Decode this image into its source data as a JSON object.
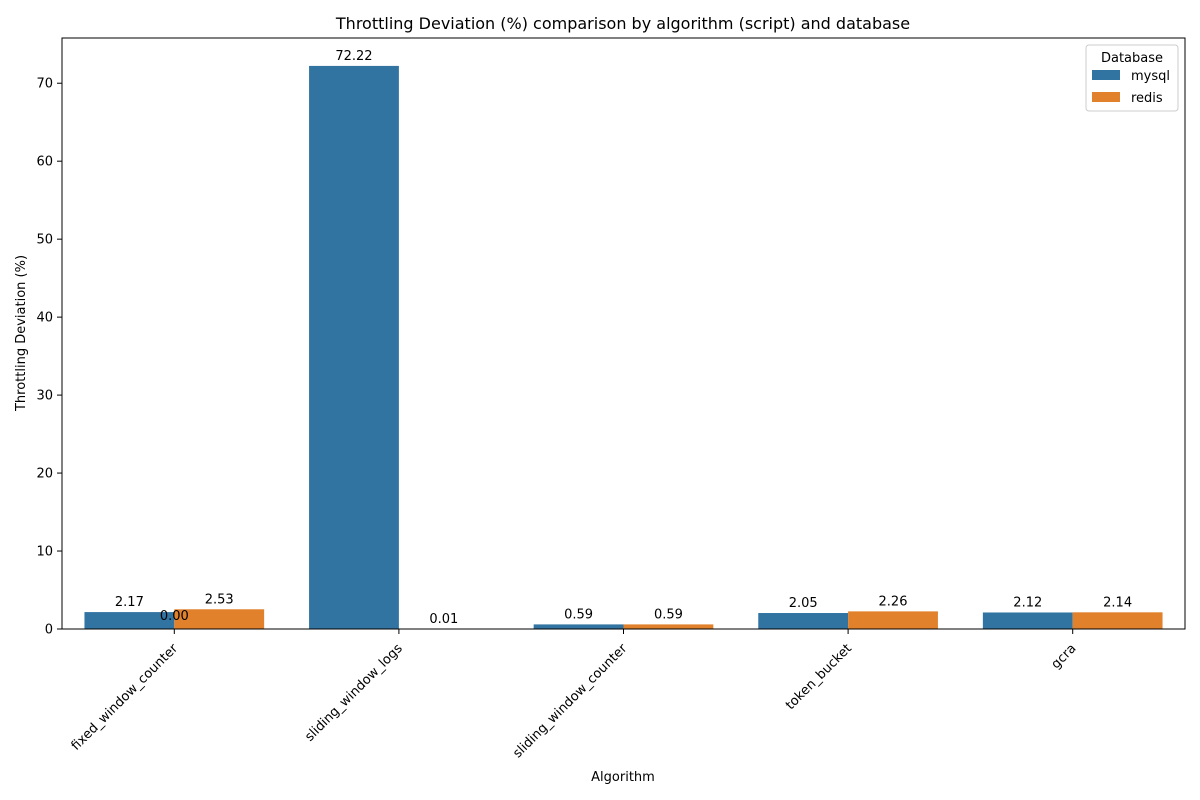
{
  "chart_data": {
    "type": "bar",
    "title": "Throttling Deviation (%) comparison by algorithm (script) and database",
    "xlabel": "Algorithm",
    "ylabel": "Throttling Deviation (%)",
    "categories": [
      "fixed_window_counter",
      "sliding_window_logs",
      "sliding_window_counter",
      "token_bucket",
      "gcra"
    ],
    "series": [
      {
        "name": "mysql",
        "color": "#3274a1",
        "values": [
          2.17,
          72.22,
          0.59,
          2.05,
          2.12
        ]
      },
      {
        "name": "redis",
        "color": "#e1812c",
        "values": [
          2.53,
          0.01,
          0.59,
          2.26,
          2.14
        ]
      }
    ],
    "bar_labels": [
      [
        "2.17",
        "72.22",
        "0.59",
        "2.05",
        "2.12"
      ],
      [
        "2.53",
        "0.01",
        "0.59",
        "2.26",
        "2.14"
      ]
    ],
    "extra_label": {
      "text": "0.00",
      "category": "fixed_window_counter",
      "value": 0.0
    },
    "ylim": [
      0,
      75.8
    ],
    "yticks": [
      0,
      10,
      20,
      30,
      40,
      50,
      60,
      70
    ],
    "legend": {
      "title": "Database",
      "placement": "top-right"
    },
    "grid": false
  }
}
